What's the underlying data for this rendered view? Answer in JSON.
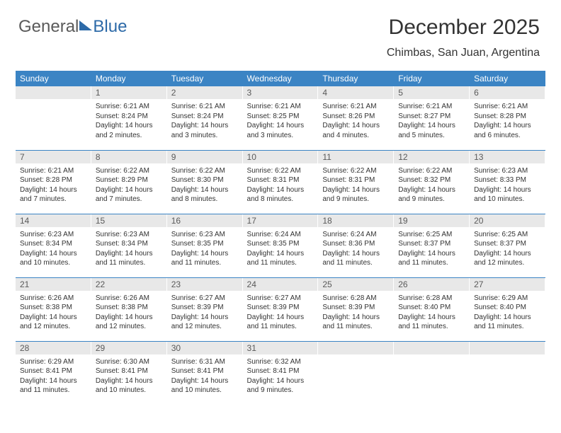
{
  "logo": {
    "part1": "General",
    "part2": "Blue"
  },
  "header": {
    "title": "December 2025",
    "location": "Chimbas, San Juan, Argentina"
  },
  "colors": {
    "header_bg": "#3b84c4",
    "header_text": "#ffffff",
    "daynum_bg": "#e8e8e8",
    "daynum_text": "#5a5a5a",
    "body_text": "#333333",
    "row_border": "#3b84c4",
    "logo_gray": "#5a5a5a",
    "logo_blue": "#2d6aa8"
  },
  "typography": {
    "title_fontsize": 30,
    "location_fontsize": 16,
    "header_fontsize": 12,
    "daynum_fontsize": 12,
    "cell_fontsize": 10
  },
  "weekdays": [
    "Sunday",
    "Monday",
    "Tuesday",
    "Wednesday",
    "Thursday",
    "Friday",
    "Saturday"
  ],
  "grid": [
    [
      null,
      {
        "n": "1",
        "sunrise": "Sunrise: 6:21 AM",
        "sunset": "Sunset: 8:24 PM",
        "daylight": "Daylight: 14 hours and 2 minutes."
      },
      {
        "n": "2",
        "sunrise": "Sunrise: 6:21 AM",
        "sunset": "Sunset: 8:24 PM",
        "daylight": "Daylight: 14 hours and 3 minutes."
      },
      {
        "n": "3",
        "sunrise": "Sunrise: 6:21 AM",
        "sunset": "Sunset: 8:25 PM",
        "daylight": "Daylight: 14 hours and 3 minutes."
      },
      {
        "n": "4",
        "sunrise": "Sunrise: 6:21 AM",
        "sunset": "Sunset: 8:26 PM",
        "daylight": "Daylight: 14 hours and 4 minutes."
      },
      {
        "n": "5",
        "sunrise": "Sunrise: 6:21 AM",
        "sunset": "Sunset: 8:27 PM",
        "daylight": "Daylight: 14 hours and 5 minutes."
      },
      {
        "n": "6",
        "sunrise": "Sunrise: 6:21 AM",
        "sunset": "Sunset: 8:28 PM",
        "daylight": "Daylight: 14 hours and 6 minutes."
      }
    ],
    [
      {
        "n": "7",
        "sunrise": "Sunrise: 6:21 AM",
        "sunset": "Sunset: 8:28 PM",
        "daylight": "Daylight: 14 hours and 7 minutes."
      },
      {
        "n": "8",
        "sunrise": "Sunrise: 6:22 AM",
        "sunset": "Sunset: 8:29 PM",
        "daylight": "Daylight: 14 hours and 7 minutes."
      },
      {
        "n": "9",
        "sunrise": "Sunrise: 6:22 AM",
        "sunset": "Sunset: 8:30 PM",
        "daylight": "Daylight: 14 hours and 8 minutes."
      },
      {
        "n": "10",
        "sunrise": "Sunrise: 6:22 AM",
        "sunset": "Sunset: 8:31 PM",
        "daylight": "Daylight: 14 hours and 8 minutes."
      },
      {
        "n": "11",
        "sunrise": "Sunrise: 6:22 AM",
        "sunset": "Sunset: 8:31 PM",
        "daylight": "Daylight: 14 hours and 9 minutes."
      },
      {
        "n": "12",
        "sunrise": "Sunrise: 6:22 AM",
        "sunset": "Sunset: 8:32 PM",
        "daylight": "Daylight: 14 hours and 9 minutes."
      },
      {
        "n": "13",
        "sunrise": "Sunrise: 6:23 AM",
        "sunset": "Sunset: 8:33 PM",
        "daylight": "Daylight: 14 hours and 10 minutes."
      }
    ],
    [
      {
        "n": "14",
        "sunrise": "Sunrise: 6:23 AM",
        "sunset": "Sunset: 8:34 PM",
        "daylight": "Daylight: 14 hours and 10 minutes."
      },
      {
        "n": "15",
        "sunrise": "Sunrise: 6:23 AM",
        "sunset": "Sunset: 8:34 PM",
        "daylight": "Daylight: 14 hours and 11 minutes."
      },
      {
        "n": "16",
        "sunrise": "Sunrise: 6:23 AM",
        "sunset": "Sunset: 8:35 PM",
        "daylight": "Daylight: 14 hours and 11 minutes."
      },
      {
        "n": "17",
        "sunrise": "Sunrise: 6:24 AM",
        "sunset": "Sunset: 8:35 PM",
        "daylight": "Daylight: 14 hours and 11 minutes."
      },
      {
        "n": "18",
        "sunrise": "Sunrise: 6:24 AM",
        "sunset": "Sunset: 8:36 PM",
        "daylight": "Daylight: 14 hours and 11 minutes."
      },
      {
        "n": "19",
        "sunrise": "Sunrise: 6:25 AM",
        "sunset": "Sunset: 8:37 PM",
        "daylight": "Daylight: 14 hours and 11 minutes."
      },
      {
        "n": "20",
        "sunrise": "Sunrise: 6:25 AM",
        "sunset": "Sunset: 8:37 PM",
        "daylight": "Daylight: 14 hours and 12 minutes."
      }
    ],
    [
      {
        "n": "21",
        "sunrise": "Sunrise: 6:26 AM",
        "sunset": "Sunset: 8:38 PM",
        "daylight": "Daylight: 14 hours and 12 minutes."
      },
      {
        "n": "22",
        "sunrise": "Sunrise: 6:26 AM",
        "sunset": "Sunset: 8:38 PM",
        "daylight": "Daylight: 14 hours and 12 minutes."
      },
      {
        "n": "23",
        "sunrise": "Sunrise: 6:27 AM",
        "sunset": "Sunset: 8:39 PM",
        "daylight": "Daylight: 14 hours and 12 minutes."
      },
      {
        "n": "24",
        "sunrise": "Sunrise: 6:27 AM",
        "sunset": "Sunset: 8:39 PM",
        "daylight": "Daylight: 14 hours and 11 minutes."
      },
      {
        "n": "25",
        "sunrise": "Sunrise: 6:28 AM",
        "sunset": "Sunset: 8:39 PM",
        "daylight": "Daylight: 14 hours and 11 minutes."
      },
      {
        "n": "26",
        "sunrise": "Sunrise: 6:28 AM",
        "sunset": "Sunset: 8:40 PM",
        "daylight": "Daylight: 14 hours and 11 minutes."
      },
      {
        "n": "27",
        "sunrise": "Sunrise: 6:29 AM",
        "sunset": "Sunset: 8:40 PM",
        "daylight": "Daylight: 14 hours and 11 minutes."
      }
    ],
    [
      {
        "n": "28",
        "sunrise": "Sunrise: 6:29 AM",
        "sunset": "Sunset: 8:41 PM",
        "daylight": "Daylight: 14 hours and 11 minutes."
      },
      {
        "n": "29",
        "sunrise": "Sunrise: 6:30 AM",
        "sunset": "Sunset: 8:41 PM",
        "daylight": "Daylight: 14 hours and 10 minutes."
      },
      {
        "n": "30",
        "sunrise": "Sunrise: 6:31 AM",
        "sunset": "Sunset: 8:41 PM",
        "daylight": "Daylight: 14 hours and 10 minutes."
      },
      {
        "n": "31",
        "sunrise": "Sunrise: 6:32 AM",
        "sunset": "Sunset: 8:41 PM",
        "daylight": "Daylight: 14 hours and 9 minutes."
      },
      null,
      null,
      null
    ]
  ]
}
